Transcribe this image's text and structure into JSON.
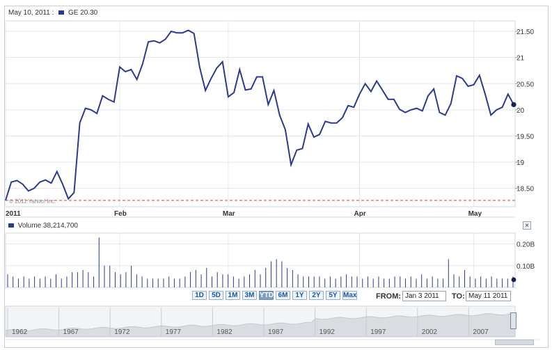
{
  "header": {
    "date": "May 10, 2011 :",
    "symbol_label": "GE 20.30"
  },
  "volume": {
    "label": "Volume 38,214,700"
  },
  "watermark": "© 2011 Yahoo! Inc.",
  "close_label": "×",
  "ranges": [
    "1D",
    "5D",
    "1M",
    "3M",
    "YTD",
    "6M",
    "1Y",
    "2Y",
    "5Y",
    "Max"
  ],
  "active_range": "YTD",
  "from_label": "FROM:",
  "from_value": "Jan 3 2011",
  "to_label": "TO:",
  "to_value": "May 11 2011",
  "colors": {
    "line": "#2b3990",
    "reference": "#d9471b",
    "grid": "#e3e6ea",
    "navigator": "#d9dde2"
  },
  "chart_data": [
    {
      "type": "line",
      "title": "GE 20.30",
      "x_tick_labels": [
        "2011",
        "Feb",
        "Mar",
        "Apr",
        "May"
      ],
      "y_tick_labels": [
        "21.50",
        "21",
        "20.50",
        "20",
        "19.50",
        "19",
        "18.50"
      ],
      "ylim": [
        18.15,
        21.7
      ],
      "reference_line": 18.27,
      "series": [
        {
          "name": "GE",
          "values": [
            18.27,
            18.62,
            18.65,
            18.58,
            18.45,
            18.5,
            18.62,
            18.66,
            18.6,
            18.82,
            18.58,
            18.3,
            18.42,
            19.75,
            20.03,
            20.0,
            19.93,
            20.27,
            20.2,
            20.15,
            20.82,
            20.73,
            20.77,
            20.58,
            20.88,
            21.3,
            21.32,
            21.28,
            21.35,
            21.5,
            21.47,
            21.47,
            21.52,
            21.46,
            20.81,
            20.37,
            20.6,
            20.8,
            20.92,
            20.25,
            20.33,
            20.77,
            20.38,
            20.4,
            20.63,
            20.63,
            20.1,
            20.37,
            19.9,
            19.62,
            18.95,
            19.23,
            19.26,
            19.73,
            19.48,
            19.53,
            19.78,
            19.75,
            19.75,
            19.85,
            20.08,
            20.05,
            20.3,
            20.5,
            20.35,
            20.55,
            20.38,
            20.2,
            20.2,
            20.01,
            19.95,
            20.0,
            20.03,
            19.98,
            20.27,
            20.4,
            19.95,
            19.9,
            20.12,
            20.65,
            20.6,
            20.45,
            20.48,
            20.66,
            20.3,
            19.9,
            20.0,
            20.05,
            20.3,
            20.1
          ]
        }
      ]
    },
    {
      "type": "bar",
      "title": "Volume 38,214,700",
      "y_tick_labels": [
        "0.20B",
        "0.10B"
      ],
      "ylim": [
        0,
        0.25
      ],
      "series": [
        {
          "name": "Volume",
          "values": [
            0.06,
            0.05,
            0.04,
            0.05,
            0.04,
            0.05,
            0.04,
            0.05,
            0.04,
            0.06,
            0.04,
            0.05,
            0.07,
            0.07,
            0.08,
            0.07,
            0.05,
            0.23,
            0.1,
            0.1,
            0.07,
            0.06,
            0.07,
            0.1,
            0.06,
            0.05,
            0.04,
            0.04,
            0.04,
            0.04,
            0.05,
            0.04,
            0.04,
            0.05,
            0.07,
            0.08,
            0.06,
            0.09,
            0.05,
            0.07,
            0.06,
            0.06,
            0.05,
            0.04,
            0.05,
            0.06,
            0.08,
            0.06,
            0.09,
            0.12,
            0.13,
            0.12,
            0.09,
            0.08,
            0.06,
            0.05,
            0.05,
            0.05,
            0.05,
            0.04,
            0.05,
            0.04,
            0.05,
            0.06,
            0.05,
            0.05,
            0.04,
            0.05,
            0.04,
            0.05,
            0.04,
            0.04,
            0.05,
            0.05,
            0.04,
            0.05,
            0.04,
            0.06,
            0.04,
            0.05,
            0.04,
            0.04,
            0.13,
            0.06,
            0.05,
            0.08,
            0.05,
            0.04,
            0.05,
            0.04,
            0.05,
            0.04,
            0.04,
            0.04,
            0.05
          ]
        }
      ]
    },
    {
      "type": "area",
      "title": "",
      "x_tick_labels": [
        "1962",
        "1967",
        "1972",
        "1977",
        "1982",
        "1987",
        "1992",
        "1997",
        "2002",
        "2007"
      ]
    }
  ]
}
